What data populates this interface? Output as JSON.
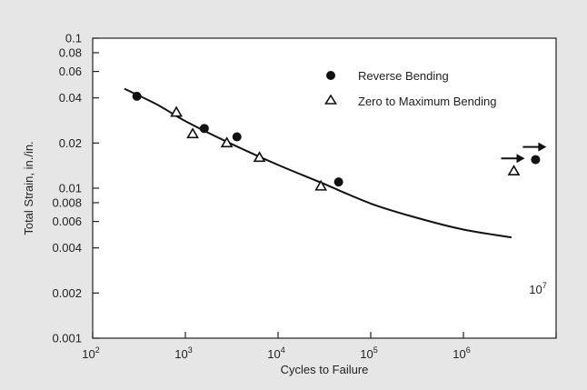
{
  "chart_data": {
    "type": "scatter",
    "title": "",
    "xlabel": "Cycles to Failure",
    "ylabel": "Total Strain, in./in.",
    "x_scale": "log",
    "y_scale": "log",
    "xlim": [
      100,
      10000000
    ],
    "ylim": [
      0.001,
      0.1
    ],
    "x_ticks": [
      {
        "value": 100,
        "base": "10",
        "exp": "2"
      },
      {
        "value": 1000,
        "base": "10",
        "exp": "3"
      },
      {
        "value": 10000,
        "base": "10",
        "exp": "4"
      },
      {
        "value": 100000,
        "base": "10",
        "exp": "5"
      },
      {
        "value": 1000000,
        "base": "10",
        "exp": "6"
      },
      {
        "value": 10000000,
        "base": "10",
        "exp": "7"
      }
    ],
    "y_ticks": [
      {
        "value": 0.1,
        "label": "0.1"
      },
      {
        "value": 0.08,
        "label": "0.08"
      },
      {
        "value": 0.06,
        "label": "0.06"
      },
      {
        "value": 0.04,
        "label": "0.04"
      },
      {
        "value": 0.02,
        "label": "0.02"
      },
      {
        "value": 0.01,
        "label": "0.01"
      },
      {
        "value": 0.008,
        "label": "0.008"
      },
      {
        "value": 0.006,
        "label": "0.006"
      },
      {
        "value": 0.004,
        "label": "0.004"
      },
      {
        "value": 0.002,
        "label": "0.002"
      },
      {
        "value": 0.001,
        "label": "0.001"
      }
    ],
    "grid": false,
    "legend_position": "top-right",
    "series": [
      {
        "name": "Reverse Bending",
        "marker": "filled-circle",
        "points": [
          {
            "x": 300,
            "y": 0.041
          },
          {
            "x": 1600,
            "y": 0.025
          },
          {
            "x": 3600,
            "y": 0.022
          },
          {
            "x": 45000,
            "y": 0.011
          },
          {
            "x": 6000000,
            "y": 0.0155,
            "runout": true
          }
        ]
      },
      {
        "name": "Zero to Maximum Bending",
        "marker": "open-triangle",
        "points": [
          {
            "x": 800,
            "y": 0.032
          },
          {
            "x": 1200,
            "y": 0.023
          },
          {
            "x": 2800,
            "y": 0.02
          },
          {
            "x": 6300,
            "y": 0.016
          },
          {
            "x": 29000,
            "y": 0.0103
          },
          {
            "x": 3500000,
            "y": 0.013,
            "runout": true
          }
        ]
      }
    ],
    "fit_curve": [
      {
        "x": 220,
        "y": 0.046
      },
      {
        "x": 500,
        "y": 0.036
      },
      {
        "x": 1000,
        "y": 0.028
      },
      {
        "x": 3000,
        "y": 0.02
      },
      {
        "x": 10000,
        "y": 0.0143
      },
      {
        "x": 30000,
        "y": 0.0108
      },
      {
        "x": 100000,
        "y": 0.0079
      },
      {
        "x": 300000,
        "y": 0.0064
      },
      {
        "x": 1000000,
        "y": 0.0053
      },
      {
        "x": 3300000,
        "y": 0.0047
      }
    ],
    "colors": {
      "background": "#e6e6e6",
      "plot_background": "#ffffff",
      "ink": "#111111"
    }
  }
}
